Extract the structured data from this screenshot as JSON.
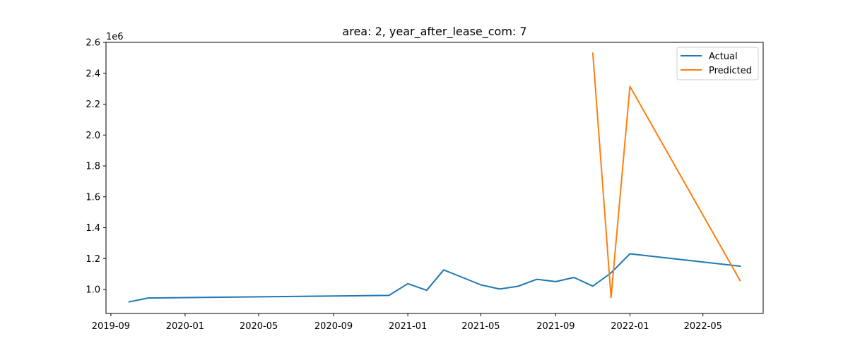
{
  "chart_data": {
    "type": "line",
    "title": "area: 2, year_after_lease_com: 7",
    "xlabel": "",
    "ylabel": "",
    "y_offset_label": "1e6",
    "xlim": [
      "2019-08-24",
      "2022-08-08"
    ],
    "ylim": [
      0.845,
      2.6
    ],
    "x_ticks": [
      "2019-09",
      "2020-01",
      "2020-05",
      "2020-09",
      "2021-01",
      "2021-05",
      "2021-09",
      "2022-01",
      "2022-05"
    ],
    "y_ticks": [
      "1.0",
      "1.2",
      "1.4",
      "1.6",
      "1.8",
      "2.0",
      "2.2",
      "2.4",
      "2.6"
    ],
    "grid": false,
    "legend_position": "top-right",
    "series": [
      {
        "name": "Actual",
        "color": "#1f77b4",
        "points": [
          [
            "2019-10-01",
            0.92
          ],
          [
            "2019-11-01",
            0.945
          ],
          [
            "2020-12-01",
            0.962
          ],
          [
            "2021-01-01",
            1.038
          ],
          [
            "2021-02-01",
            0.995
          ],
          [
            "2021-03-01",
            1.127
          ],
          [
            "2021-04-01",
            1.078
          ],
          [
            "2021-05-01",
            1.03
          ],
          [
            "2021-06-01",
            1.003
          ],
          [
            "2021-07-01",
            1.021
          ],
          [
            "2021-08-01",
            1.066
          ],
          [
            "2021-09-01",
            1.051
          ],
          [
            "2021-10-01",
            1.078
          ],
          [
            "2021-11-01",
            1.022
          ],
          [
            "2021-12-01",
            1.108
          ],
          [
            "2022-01-01",
            1.231
          ],
          [
            "2022-07-01",
            1.151
          ]
        ]
      },
      {
        "name": "Predicted",
        "color": "#ff7f0e",
        "points": [
          [
            "2021-11-01",
            2.53
          ],
          [
            "2021-12-01",
            0.948
          ],
          [
            "2022-01-01",
            2.315
          ],
          [
            "2022-07-01",
            1.058
          ]
        ]
      }
    ]
  }
}
